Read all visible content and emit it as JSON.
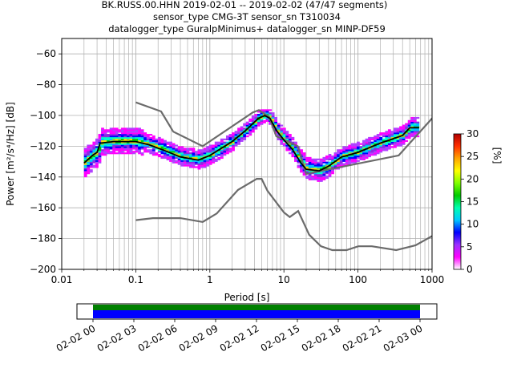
{
  "title_lines": [
    "BK.RUSS.00.HHN   2019-02-01 -- 2019-02-02  (47/47 segments)",
    "sensor_type CMG-3T sensor_sn T310034",
    "datalogger_type GuralpMinimus+ datalogger_sn MINP-DF59"
  ],
  "chart_data": {
    "type": "heatmap",
    "xlabel": "Period [s]",
    "ylabel": "Power [m²/s⁴/Hz] [dB]",
    "x_scale": "log",
    "xlim": [
      0.01,
      1000
    ],
    "ylim": [
      -200,
      -50
    ],
    "x_ticks": [
      0.01,
      0.1,
      1,
      10,
      100,
      1000
    ],
    "x_tick_labels": [
      "0.01",
      "0.1",
      "1",
      "10",
      "100",
      "1000"
    ],
    "y_ticks": [
      -200,
      -180,
      -160,
      -140,
      -120,
      -100,
      -80,
      -60
    ],
    "y_tick_labels": [
      "−200",
      "−180",
      "−160",
      "−140",
      "−120",
      "−100",
      "−80",
      "−60"
    ],
    "grid": true,
    "noise_models": [
      {
        "points": [
          [
            0.1,
            -91.5
          ],
          [
            0.22,
            -97.4
          ],
          [
            0.32,
            -110.5
          ],
          [
            0.8,
            -120
          ],
          [
            3.8,
            -98
          ],
          [
            4.6,
            -96.5
          ],
          [
            6.3,
            -101
          ],
          [
            7.9,
            -113.5
          ],
          [
            15.4,
            -120
          ],
          [
            20,
            -138
          ],
          [
            354.8,
            -126
          ],
          [
            10000,
            -48.5
          ]
        ]
      },
      {
        "points": [
          [
            0.1,
            -168
          ],
          [
            0.17,
            -166.7
          ],
          [
            0.4,
            -166.7
          ],
          [
            0.8,
            -169.2
          ],
          [
            1.24,
            -163.7
          ],
          [
            2.4,
            -148.4
          ],
          [
            4.3,
            -141.2
          ],
          [
            5,
            -141.2
          ],
          [
            6,
            -149
          ],
          [
            10,
            -163
          ],
          [
            12,
            -166
          ],
          [
            15.6,
            -162.1
          ],
          [
            21.9,
            -177.5
          ],
          [
            31.6,
            -185
          ],
          [
            45,
            -187.5
          ],
          [
            70,
            -187.5
          ],
          [
            101,
            -185
          ],
          [
            154,
            -185
          ],
          [
            328,
            -187.5
          ],
          [
            600,
            -184.4
          ],
          [
            10000,
            -151.5
          ]
        ]
      }
    ],
    "mean_curve": {
      "points": [
        [
          0.02,
          -131
        ],
        [
          0.026,
          -126
        ],
        [
          0.03,
          -124
        ],
        [
          0.033,
          -118
        ],
        [
          0.05,
          -117
        ],
        [
          0.1,
          -117
        ],
        [
          0.15,
          -119
        ],
        [
          0.25,
          -123
        ],
        [
          0.4,
          -127
        ],
        [
          0.7,
          -129
        ],
        [
          1,
          -126
        ],
        [
          2,
          -117
        ],
        [
          3,
          -110
        ],
        [
          4.5,
          -102
        ],
        [
          5.5,
          -100
        ],
        [
          6.5,
          -102
        ],
        [
          8,
          -110
        ],
        [
          10,
          -116
        ],
        [
          13,
          -122
        ],
        [
          17,
          -131
        ],
        [
          20,
          -135
        ],
        [
          30,
          -136
        ],
        [
          40,
          -133
        ],
        [
          60,
          -127
        ],
        [
          100,
          -124
        ],
        [
          200,
          -118
        ],
        [
          400,
          -113
        ],
        [
          500,
          -108
        ],
        [
          670,
          -108
        ]
      ]
    },
    "colorbar": {
      "label": "[%]",
      "range": [
        0,
        30
      ],
      "ticks": [
        0,
        5,
        10,
        15,
        20,
        25,
        30
      ],
      "tick_labels": [
        "0",
        "5",
        "10",
        "15",
        "20",
        "25",
        "30"
      ],
      "colors": [
        "#ffffff",
        "#ff00ff",
        "#9b30ff",
        "#0000ff",
        "#00c8ff",
        "#00ffb0",
        "#00cc00",
        "#7fff00",
        "#ffff00",
        "#ffa500",
        "#ff3000",
        "#b00000"
      ]
    }
  },
  "timeline": {
    "tick_labels": [
      "02-02 00",
      "02-02 03",
      "02-02 06",
      "02-02 09",
      "02-02 12",
      "02-02 15",
      "02-02 18",
      "02-02 21",
      "02-03 00"
    ],
    "bar_colors": [
      "#008000",
      "#0000ff"
    ]
  }
}
